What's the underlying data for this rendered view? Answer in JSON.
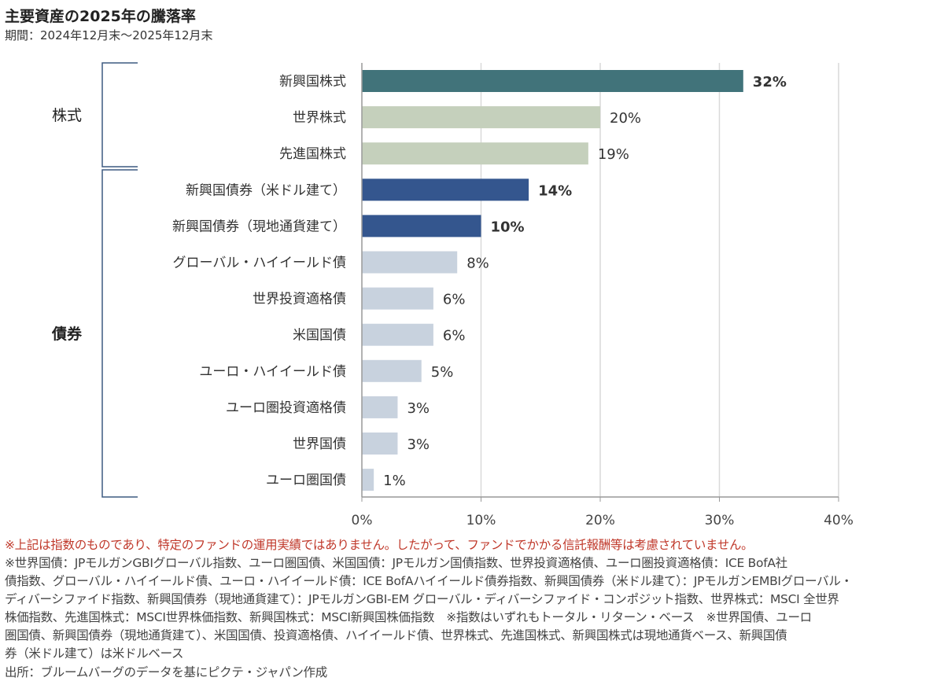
{
  "title": "主要資産の2025年の騰落率",
  "subtitle": "期間：2024年12月末～2025年12月末",
  "chart_data": {
    "type": "bar",
    "orientation": "horizontal",
    "categories": [
      "新興国株式",
      "世界株式",
      "先進国株式",
      "新興国債券（米ドル建て）",
      "新興国債券（現地通貨建て）",
      "グローバル・ハイイールド債",
      "世界投資適格債",
      "米国国債",
      "ユーロ・ハイイールド債",
      "ユーロ圏投資適格債",
      "世界国債",
      "ユーロ圏国債"
    ],
    "values": [
      32,
      20,
      19,
      14,
      10,
      8,
      6,
      6,
      5,
      3,
      3,
      1
    ],
    "data_labels": [
      "32%",
      "20%",
      "19%",
      "14%",
      "10%",
      "8%",
      "6%",
      "6%",
      "5%",
      "3%",
      "3%",
      "1%"
    ],
    "bold_labels": [
      true,
      false,
      false,
      true,
      true,
      false,
      false,
      false,
      false,
      false,
      false,
      false
    ],
    "colors": [
      "#41737a",
      "#c5d0bc",
      "#c5d0bc",
      "#34568e",
      "#34568e",
      "#c8d2de",
      "#c8d2de",
      "#c8d2de",
      "#c8d2de",
      "#c8d2de",
      "#c8d2de",
      "#c8d2de"
    ],
    "groups": [
      {
        "label": "株式",
        "from": 0,
        "to": 2
      },
      {
        "label": "債券",
        "from": 3,
        "to": 11
      }
    ],
    "xlim": [
      0,
      40
    ],
    "xticks": [
      0,
      10,
      20,
      30,
      40
    ],
    "xtick_labels": [
      "0%",
      "10%",
      "20%",
      "30%",
      "40%"
    ],
    "grid": true
  },
  "notes": {
    "disclaimer": "※上記は指数のものであり、特定のファンドの運用実績ではありません。したがって、ファンドでかかる信託報酬等は考慮されていません。",
    "lines": [
      "※世界国債：JPモルガンGBIグローバル指数、ユーロ圏国債、米国国債：JPモルガン国債指数、世界投資適格債、ユーロ圏投資適格債：ICE BofA社",
      "債指数、グローバル・ハイイールド債、ユーロ・ハイイールド債：ICE BofAハイイールド債券指数、新興国債券（米ドル建て）：JPモルガンEMBIグローバル・",
      "ディバーシファイド指数、新興国債券（現地通貨建て）：JPモルガンGBI-EM グローバル・ディバーシファイド・コンポジット指数、世界株式：MSCI 全世界",
      "株価指数、先進国株式：MSCI世界株価指数、新興国株式：MSCI新興国株価指数　※指数はいずれもトータル・リターン・ベース　※世界国債、ユーロ",
      "圏国債、新興国債券（現地通貨建て）、米国国債、投資適格債、ハイイールド債、世界株式、先進国株式、新興国株式は現地通貨ベース、新興国債",
      "券（米ドル建て）は米ドルベース"
    ],
    "source": "出所：ブルームバーグのデータを基にピクテ・ジャパン作成"
  }
}
